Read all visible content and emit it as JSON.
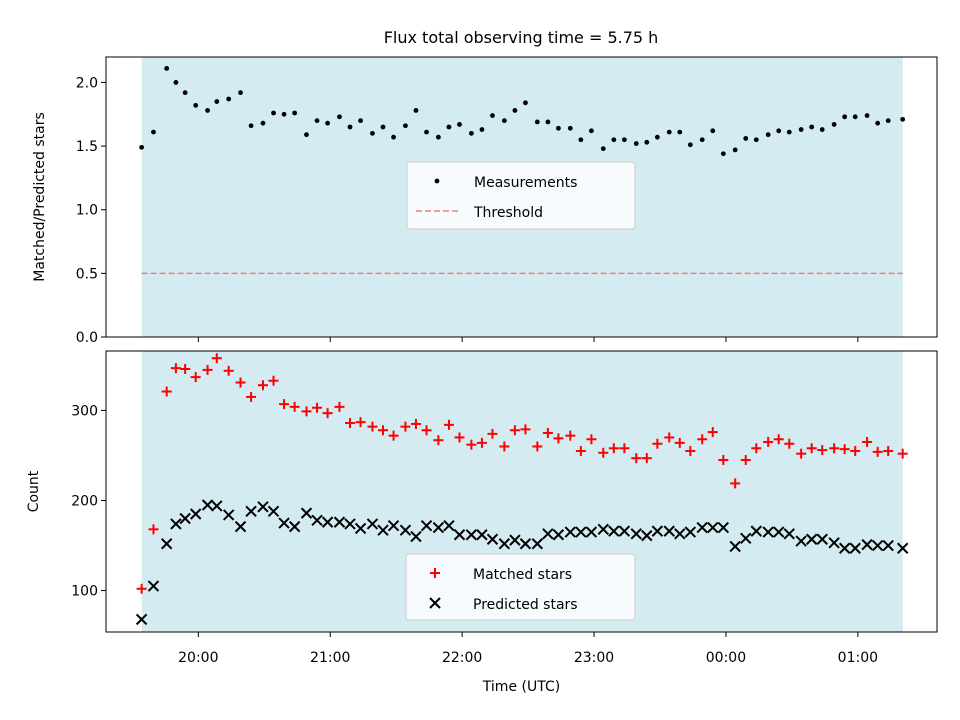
{
  "chart_data": [
    {
      "type": "scatter",
      "title": "Flux total observing time = 5.75 h",
      "xlabel": "",
      "ylabel": "Matched/Predicted stars",
      "ylim": [
        0,
        2.2
      ],
      "yticks": [
        "0.0",
        "0.5",
        "1.0",
        "1.5",
        "2.0"
      ],
      "ytick_values": [
        0,
        0.5,
        1.0,
        1.5,
        2.0
      ],
      "xlim_hours": [
        19.3,
        25.6
      ],
      "shaded_span_hours": [
        19.57,
        25.34
      ],
      "shade_color": "#add8e6",
      "legend_position": "center",
      "legend": [
        "Measurements",
        "Threshold"
      ],
      "threshold": 0.5,
      "threshold_color": "#f08080",
      "series": [
        {
          "name": "Measurements",
          "color": "#000000",
          "x": [
            19.57,
            19.66,
            19.76,
            19.83,
            19.9,
            19.98,
            20.07,
            20.14,
            20.23,
            20.32,
            20.4,
            20.49,
            20.57,
            20.65,
            20.73,
            20.82,
            20.9,
            20.98,
            21.07,
            21.15,
            21.23,
            21.32,
            21.4,
            21.48,
            21.57,
            21.65,
            21.73,
            21.82,
            21.9,
            21.98,
            22.07,
            22.15,
            22.23,
            22.32,
            22.4,
            22.48,
            22.57,
            22.65,
            22.73,
            22.82,
            22.9,
            22.98,
            23.07,
            23.15,
            23.23,
            23.32,
            23.4,
            23.48,
            23.57,
            23.65,
            23.73,
            23.82,
            23.9,
            23.98,
            24.07,
            24.15,
            24.23,
            24.32,
            24.4,
            24.48,
            24.57,
            24.65,
            24.73,
            24.82,
            24.9,
            24.98,
            25.07,
            25.15,
            25.23,
            25.34
          ],
          "values": [
            1.49,
            1.61,
            2.11,
            2.0,
            1.92,
            1.82,
            1.78,
            1.85,
            1.87,
            1.92,
            1.66,
            1.68,
            1.76,
            1.75,
            1.76,
            1.59,
            1.7,
            1.68,
            1.73,
            1.65,
            1.7,
            1.6,
            1.65,
            1.57,
            1.66,
            1.78,
            1.61,
            1.57,
            1.65,
            1.67,
            1.6,
            1.63,
            1.74,
            1.7,
            1.78,
            1.84,
            1.69,
            1.69,
            1.64,
            1.64,
            1.55,
            1.62,
            1.48,
            1.55,
            1.55,
            1.52,
            1.53,
            1.57,
            1.61,
            1.61,
            1.51,
            1.55,
            1.62,
            1.44,
            1.47,
            1.56,
            1.55,
            1.59,
            1.62,
            1.61,
            1.63,
            1.65,
            1.63,
            1.67,
            1.73,
            1.73,
            1.74,
            1.68,
            1.7,
            1.71
          ]
        }
      ]
    },
    {
      "type": "scatter",
      "title": "",
      "xlabel": "Time (UTC)",
      "ylabel": "Count",
      "ylim": [
        54,
        366
      ],
      "yticks": [
        "100",
        "200",
        "300"
      ],
      "ytick_values": [
        100,
        200,
        300
      ],
      "xticks": [
        "20:00",
        "21:00",
        "22:00",
        "23:00",
        "00:00",
        "01:00"
      ],
      "xtick_hours": [
        20,
        21,
        22,
        23,
        24,
        25
      ],
      "xlim_hours": [
        19.3,
        25.6
      ],
      "shaded_span_hours": [
        19.57,
        25.34
      ],
      "shade_color": "#add8e6",
      "legend_position": "lower center",
      "legend": [
        "Matched stars",
        "Predicted stars"
      ],
      "series": [
        {
          "name": "Matched stars",
          "marker": "plus",
          "color": "#ff0000",
          "x": [
            19.57,
            19.66,
            19.76,
            19.83,
            19.9,
            19.98,
            20.07,
            20.14,
            20.23,
            20.32,
            20.4,
            20.49,
            20.57,
            20.65,
            20.73,
            20.82,
            20.9,
            20.98,
            21.07,
            21.15,
            21.23,
            21.32,
            21.4,
            21.48,
            21.57,
            21.65,
            21.73,
            21.82,
            21.9,
            21.98,
            22.07,
            22.15,
            22.23,
            22.32,
            22.4,
            22.48,
            22.57,
            22.65,
            22.73,
            22.82,
            22.9,
            22.98,
            23.07,
            23.15,
            23.23,
            23.32,
            23.4,
            23.48,
            23.57,
            23.65,
            23.73,
            23.82,
            23.9,
            23.98,
            24.07,
            24.15,
            24.23,
            24.32,
            24.4,
            24.48,
            24.57,
            24.65,
            24.73,
            24.82,
            24.9,
            24.98,
            25.07,
            25.15,
            25.23,
            25.34
          ],
          "values": [
            102,
            168,
            321,
            347,
            346,
            337,
            345,
            358,
            344,
            331,
            315,
            328,
            333,
            307,
            304,
            299,
            303,
            297,
            304,
            286,
            287,
            282,
            278,
            272,
            282,
            285,
            278,
            267,
            284,
            270,
            262,
            264,
            274,
            260,
            278,
            279,
            260,
            275,
            269,
            272,
            255,
            268,
            253,
            258,
            258,
            247,
            247,
            263,
            270,
            264,
            255,
            268,
            276,
            245,
            219,
            245,
            258,
            265,
            268,
            263,
            252,
            258,
            256,
            258,
            257,
            255,
            265,
            254,
            255,
            252
          ]
        },
        {
          "name": "Predicted stars",
          "marker": "x",
          "color": "#000000",
          "x": [
            19.57,
            19.66,
            19.76,
            19.83,
            19.9,
            19.98,
            20.07,
            20.14,
            20.23,
            20.32,
            20.4,
            20.49,
            20.57,
            20.65,
            20.73,
            20.82,
            20.9,
            20.98,
            21.07,
            21.15,
            21.23,
            21.32,
            21.4,
            21.48,
            21.57,
            21.65,
            21.73,
            21.82,
            21.9,
            21.98,
            22.07,
            22.15,
            22.23,
            22.32,
            22.4,
            22.48,
            22.57,
            22.65,
            22.73,
            22.82,
            22.9,
            22.98,
            23.07,
            23.15,
            23.23,
            23.32,
            23.4,
            23.48,
            23.57,
            23.65,
            23.73,
            23.82,
            23.9,
            23.98,
            24.07,
            24.15,
            24.23,
            24.32,
            24.4,
            24.48,
            24.57,
            24.65,
            24.73,
            24.82,
            24.9,
            24.98,
            25.07,
            25.15,
            25.23,
            25.34
          ],
          "values": [
            68,
            105,
            152,
            174,
            180,
            185,
            195,
            194,
            184,
            171,
            188,
            193,
            188,
            175,
            171,
            186,
            178,
            176,
            176,
            174,
            169,
            174,
            167,
            172,
            167,
            160,
            172,
            170,
            172,
            162,
            162,
            162,
            157,
            152,
            156,
            152,
            152,
            163,
            162,
            165,
            165,
            165,
            168,
            166,
            166,
            163,
            161,
            166,
            166,
            163,
            165,
            170,
            170,
            170,
            149,
            158,
            166,
            165,
            165,
            163,
            155,
            157,
            157,
            153,
            147,
            147,
            151,
            150,
            150,
            147
          ]
        }
      ]
    }
  ]
}
